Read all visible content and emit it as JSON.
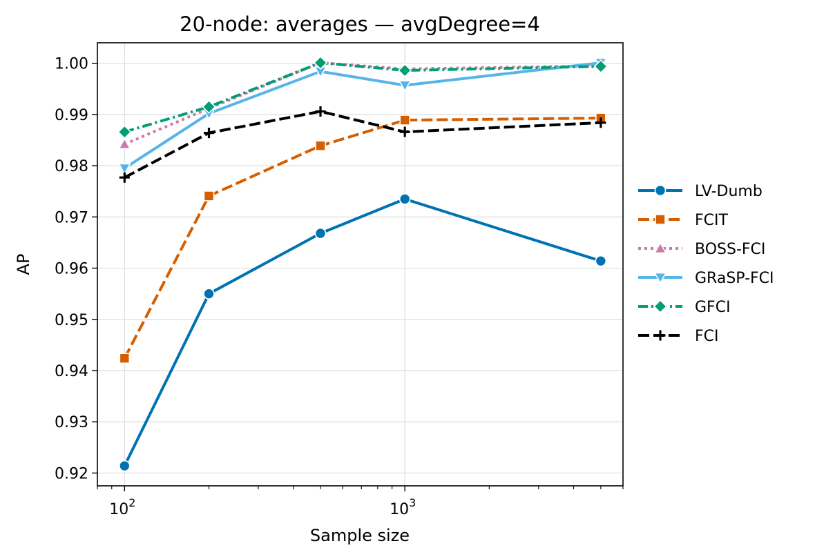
{
  "chart_data": {
    "type": "line",
    "title": "20-node: averages — avgDegree=4",
    "xlabel": "Sample size",
    "ylabel": "AP",
    "xscale": "log",
    "xlim": [
      80,
      6000
    ],
    "ylim": [
      0.9175,
      1.004
    ],
    "grid": true,
    "legend_position": "right-outside",
    "x": [
      100,
      200,
      500,
      1000,
      5000
    ],
    "x_ticks": [
      100,
      1000
    ],
    "x_tick_labels": [
      {
        "base": "10",
        "exp": "2"
      },
      {
        "base": "10",
        "exp": "3"
      }
    ],
    "y_ticks": [
      0.92,
      0.93,
      0.94,
      0.95,
      0.96,
      0.97,
      0.98,
      0.99,
      1.0
    ],
    "y_tick_labels": [
      "0.92",
      "0.93",
      "0.94",
      "0.95",
      "0.96",
      "0.97",
      "0.98",
      "0.99",
      "1.00"
    ],
    "series": [
      {
        "name": "LV-Dumb",
        "values": [
          0.9214,
          0.955,
          0.9668,
          0.9735,
          0.9614
        ],
        "color": "#0072b2",
        "dash": "solid",
        "marker": "circle"
      },
      {
        "name": "FCIT",
        "values": [
          0.9424,
          0.9741,
          0.9839,
          0.9889,
          0.9893
        ],
        "color": "#d55e00",
        "dash": "dashed",
        "marker": "square"
      },
      {
        "name": "BOSS-FCI",
        "values": [
          0.9842,
          0.9912,
          1.0001,
          0.9989,
          0.9995
        ],
        "color": "#cc79a7",
        "dash": "dotted",
        "marker": "triangle-up"
      },
      {
        "name": "GRaSP-FCI",
        "values": [
          0.9795,
          0.9902,
          0.9984,
          0.9957,
          1.0001
        ],
        "color": "#56b4e9",
        "dash": "solid",
        "marker": "triangle-down"
      },
      {
        "name": "GFCI",
        "values": [
          0.9866,
          0.9915,
          1.0001,
          0.9986,
          0.9994
        ],
        "color": "#009e73",
        "dash": "dashdot",
        "marker": "diamond"
      },
      {
        "name": "FCI",
        "values": [
          0.9777,
          0.9864,
          0.9906,
          0.9866,
          0.9884
        ],
        "color": "#000000",
        "dash": "dashed",
        "marker": "plus"
      }
    ]
  }
}
